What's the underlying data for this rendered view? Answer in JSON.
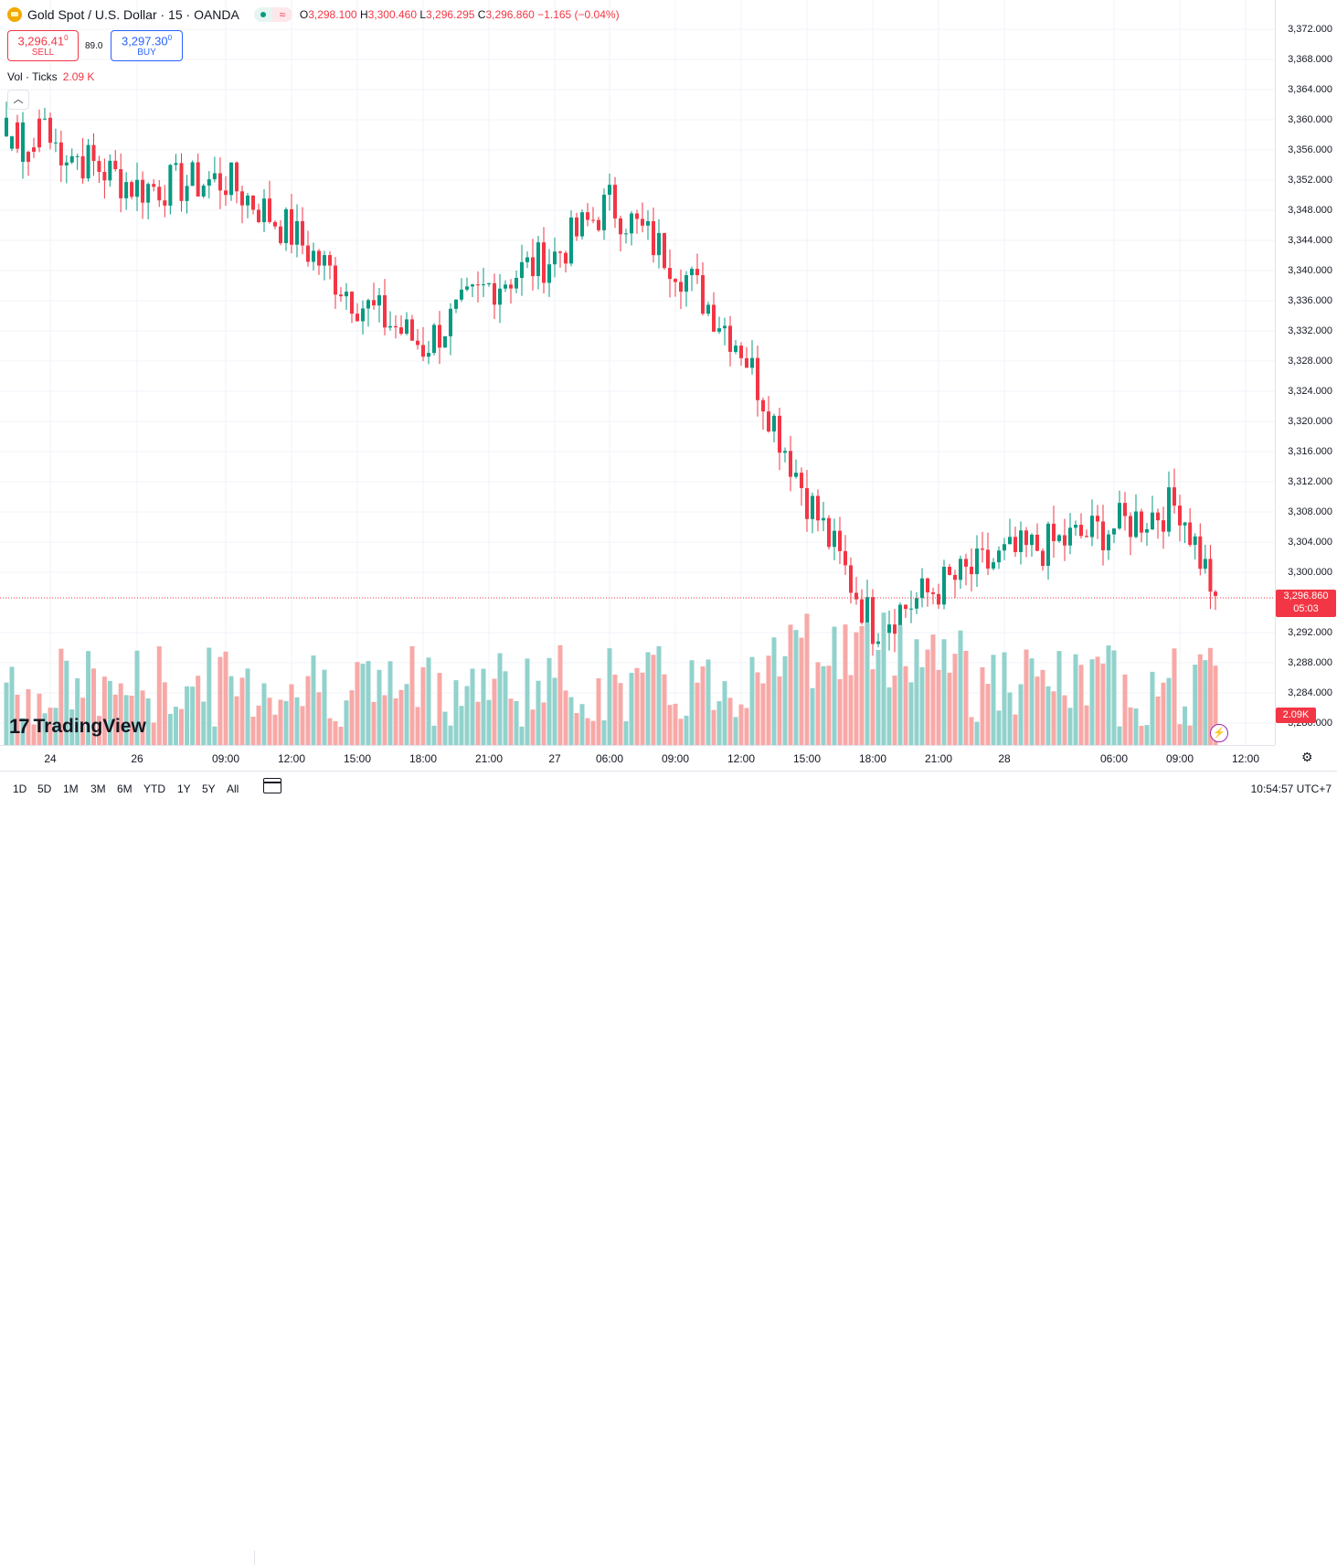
{
  "header": {
    "title": "Gold Spot / U.S. Dollar · 15 · OANDA",
    "ohlc": {
      "o_label": "O",
      "o": "3,298.100",
      "h_label": "H",
      "h": "3,300.460",
      "l_label": "L",
      "l": "3,296.295",
      "c_label": "C",
      "c": "3,296.860",
      "change": "−1.165 (−0.04%)"
    },
    "wave_icon": "≈"
  },
  "trade": {
    "sell_price": "3,296.41",
    "sell_sup": "0",
    "sell_label": "SELL",
    "spread": "89.0",
    "buy_price": "3,297.30",
    "buy_sup": "0",
    "buy_label": "BUY"
  },
  "volume_legend": {
    "label": "Vol · Ticks",
    "value": "2.09 K"
  },
  "watermark": {
    "logo": "17",
    "text": "TradingView"
  },
  "price_axis": {
    "ticks": [
      "3,372.000",
      "3,368.000",
      "3,364.000",
      "3,360.000",
      "3,356.000",
      "3,352.000",
      "3,348.000",
      "3,344.000",
      "3,340.000",
      "3,336.000",
      "3,332.000",
      "3,328.000",
      "3,324.000",
      "3,320.000",
      "3,316.000",
      "3,312.000",
      "3,308.000",
      "3,304.000",
      "3,300.000",
      "3,292.000",
      "3,288.000",
      "3,284.000",
      "3,280.000"
    ],
    "current_price": "3,296.860",
    "countdown": "05:03",
    "volume_tag": "2.09K"
  },
  "time_axis": {
    "labels": [
      "24",
      "26",
      "09:00",
      "12:00",
      "15:00",
      "18:00",
      "21:00",
      "27",
      "06:00",
      "09:00",
      "12:00",
      "15:00",
      "18:00",
      "21:00",
      "28",
      "06:00",
      "09:00",
      "12:00"
    ]
  },
  "bottom_bar": {
    "ranges": [
      "1D",
      "5D",
      "1M",
      "3M",
      "6M",
      "YTD",
      "1Y",
      "5Y",
      "All"
    ],
    "clock": "10:54:57 UTC+7"
  },
  "colors": {
    "up": "#089981",
    "down": "#f23645",
    "up_vol": "#92d2cc",
    "down_vol": "#f7a9a7",
    "grid": "#f0f3fa"
  },
  "chart_data": {
    "type": "candlestick",
    "symbol": "Gold Spot / U.S. Dollar",
    "interval": "15",
    "ylim": [
      3278,
      3374
    ],
    "points": [
      {
        "t": "24",
        "close": 3357
      },
      {
        "t": "26",
        "close": 3351
      },
      {
        "t": "09:00",
        "close": 3352
      },
      {
        "t": "12:00",
        "close": 3345
      },
      {
        "t": "15:00",
        "close": 3336
      },
      {
        "t": "18:00",
        "close": 3330
      },
      {
        "t": "21:00",
        "close": 3338
      },
      {
        "t": "27",
        "close": 3342
      },
      {
        "t": "06:00",
        "close": 3349
      },
      {
        "t": "09:00",
        "close": 3341
      },
      {
        "t": "12:00",
        "close": 3330
      },
      {
        "t": "15:00",
        "close": 3310
      },
      {
        "t": "18:00",
        "close": 3293
      },
      {
        "t": "21:00",
        "close": 3298
      },
      {
        "t": "28",
        "close": 3302
      },
      {
        "t": "06:00",
        "close": 3306
      },
      {
        "t": "09:00",
        "close": 3309
      },
      {
        "t": "last",
        "close": 3296.86
      }
    ]
  }
}
